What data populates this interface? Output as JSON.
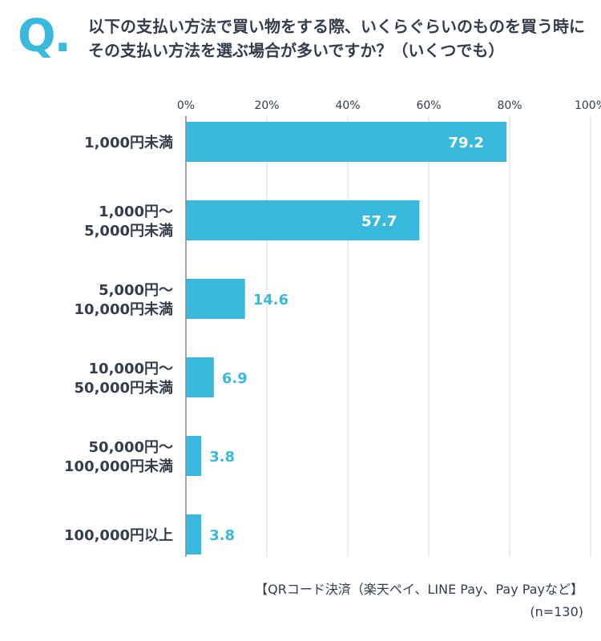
{
  "header": {
    "q_mark": "Q.",
    "question": "以下の支払い方法で買い物をする際、いくらぐらいのものを買う時にその支払い方法を選ぶ場合が多いですか？（いくつでも）"
  },
  "chart_data": {
    "type": "bar",
    "orientation": "horizontal",
    "title": "",
    "xlabel": "",
    "ylabel": "",
    "xlim": [
      0,
      100
    ],
    "x_ticks": [
      "0%",
      "20%",
      "40%",
      "60%",
      "80%",
      "100%"
    ],
    "grid": true,
    "categories": [
      [
        "1,000円未満"
      ],
      [
        "1,000円〜",
        "5,000円未満"
      ],
      [
        "5,000円〜",
        "10,000円未満"
      ],
      [
        "10,000円〜",
        "50,000円未満"
      ],
      [
        "50,000円〜",
        "100,000円未満"
      ],
      [
        "100,000円以上"
      ]
    ],
    "values": [
      79.2,
      57.7,
      14.6,
      6.9,
      3.8,
      3.8
    ],
    "value_labels": [
      "79.2",
      "57.7",
      "14.6",
      "6.9",
      "3.8",
      "3.8"
    ],
    "bar_color": "#3ab9df",
    "inside_label_color": "#ffffff"
  },
  "footer": {
    "series_label": "【QRコード決済（楽天ペイ、LINE Pay、Pay Payなど】",
    "sample_size": "(n=130)"
  }
}
